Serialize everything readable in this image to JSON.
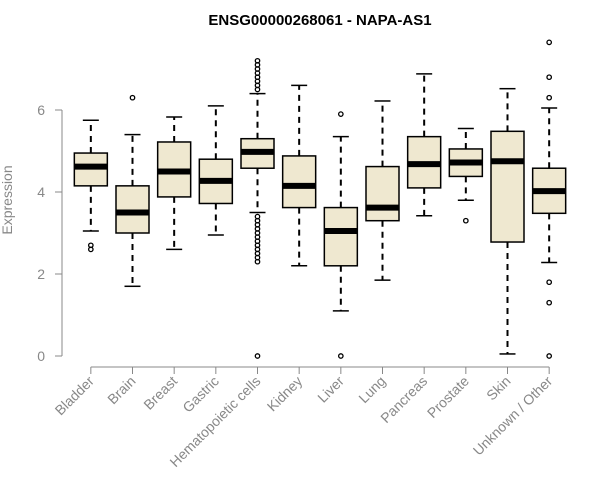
{
  "chart_data": {
    "type": "boxplot",
    "title": "ENSG00000268061 - NAPA-AS1",
    "xlabel": "",
    "ylabel": "Expression",
    "ylim": [
      0,
      7.3
    ],
    "yticks": [
      0,
      2,
      4,
      6
    ],
    "box_fill": "#efe8d0",
    "categories": [
      "Bladder",
      "Brain",
      "Breast",
      "Gastric",
      "Hematopoietic cells",
      "Kidney",
      "Liver",
      "Lung",
      "Pancreas",
      "Prostate",
      "Skin",
      "Unknown / Other"
    ],
    "boxes": [
      {
        "name": "Bladder",
        "whisker_low": 3.05,
        "q1": 4.15,
        "median": 4.62,
        "q3": 4.95,
        "whisker_high": 5.75,
        "outliers": [
          2.6,
          2.7
        ]
      },
      {
        "name": "Brain",
        "whisker_low": 1.7,
        "q1": 3.0,
        "median": 3.5,
        "q3": 4.15,
        "whisker_high": 5.4,
        "outliers": [
          6.3
        ]
      },
      {
        "name": "Breast",
        "whisker_low": 2.6,
        "q1": 3.88,
        "median": 4.5,
        "q3": 5.22,
        "whisker_high": 5.83,
        "outliers": []
      },
      {
        "name": "Gastric",
        "whisker_low": 2.95,
        "q1": 3.72,
        "median": 4.27,
        "q3": 4.8,
        "whisker_high": 6.1,
        "outliers": []
      },
      {
        "name": "Hematopoietic cells",
        "whisker_low": 3.5,
        "q1": 4.58,
        "median": 4.98,
        "q3": 5.3,
        "whisker_high": 6.4,
        "outliers": [
          0.0,
          2.3,
          2.4,
          2.5,
          2.6,
          2.7,
          2.8,
          2.9,
          3.0,
          3.1,
          3.2,
          3.3,
          3.4,
          6.5,
          6.6,
          6.7,
          6.8,
          6.9,
          7.0,
          7.1,
          7.2
        ]
      },
      {
        "name": "Kidney",
        "whisker_low": 2.2,
        "q1": 3.62,
        "median": 4.15,
        "q3": 4.88,
        "whisker_high": 6.6,
        "outliers": []
      },
      {
        "name": "Liver",
        "whisker_low": 1.1,
        "q1": 2.2,
        "median": 3.05,
        "q3": 3.62,
        "whisker_high": 5.35,
        "outliers": [
          0.0,
          5.9
        ]
      },
      {
        "name": "Lung",
        "whisker_low": 1.85,
        "q1": 3.3,
        "median": 3.62,
        "q3": 4.62,
        "whisker_high": 6.22,
        "outliers": []
      },
      {
        "name": "Pancreas",
        "whisker_low": 3.42,
        "q1": 4.1,
        "median": 4.68,
        "q3": 5.35,
        "whisker_high": 6.88,
        "outliers": []
      },
      {
        "name": "Prostate",
        "whisker_low": 3.8,
        "q1": 4.38,
        "median": 4.72,
        "q3": 5.05,
        "whisker_high": 5.55,
        "outliers": [
          3.3
        ]
      },
      {
        "name": "Skin",
        "whisker_low": 0.05,
        "q1": 2.78,
        "median": 4.75,
        "q3": 5.48,
        "whisker_high": 6.52,
        "outliers": []
      },
      {
        "name": "Unknown / Other",
        "whisker_low": 2.28,
        "q1": 3.48,
        "median": 4.02,
        "q3": 4.58,
        "whisker_high": 6.05,
        "outliers": [
          0.0,
          1.3,
          1.8,
          6.3,
          6.8,
          7.65
        ]
      }
    ]
  }
}
